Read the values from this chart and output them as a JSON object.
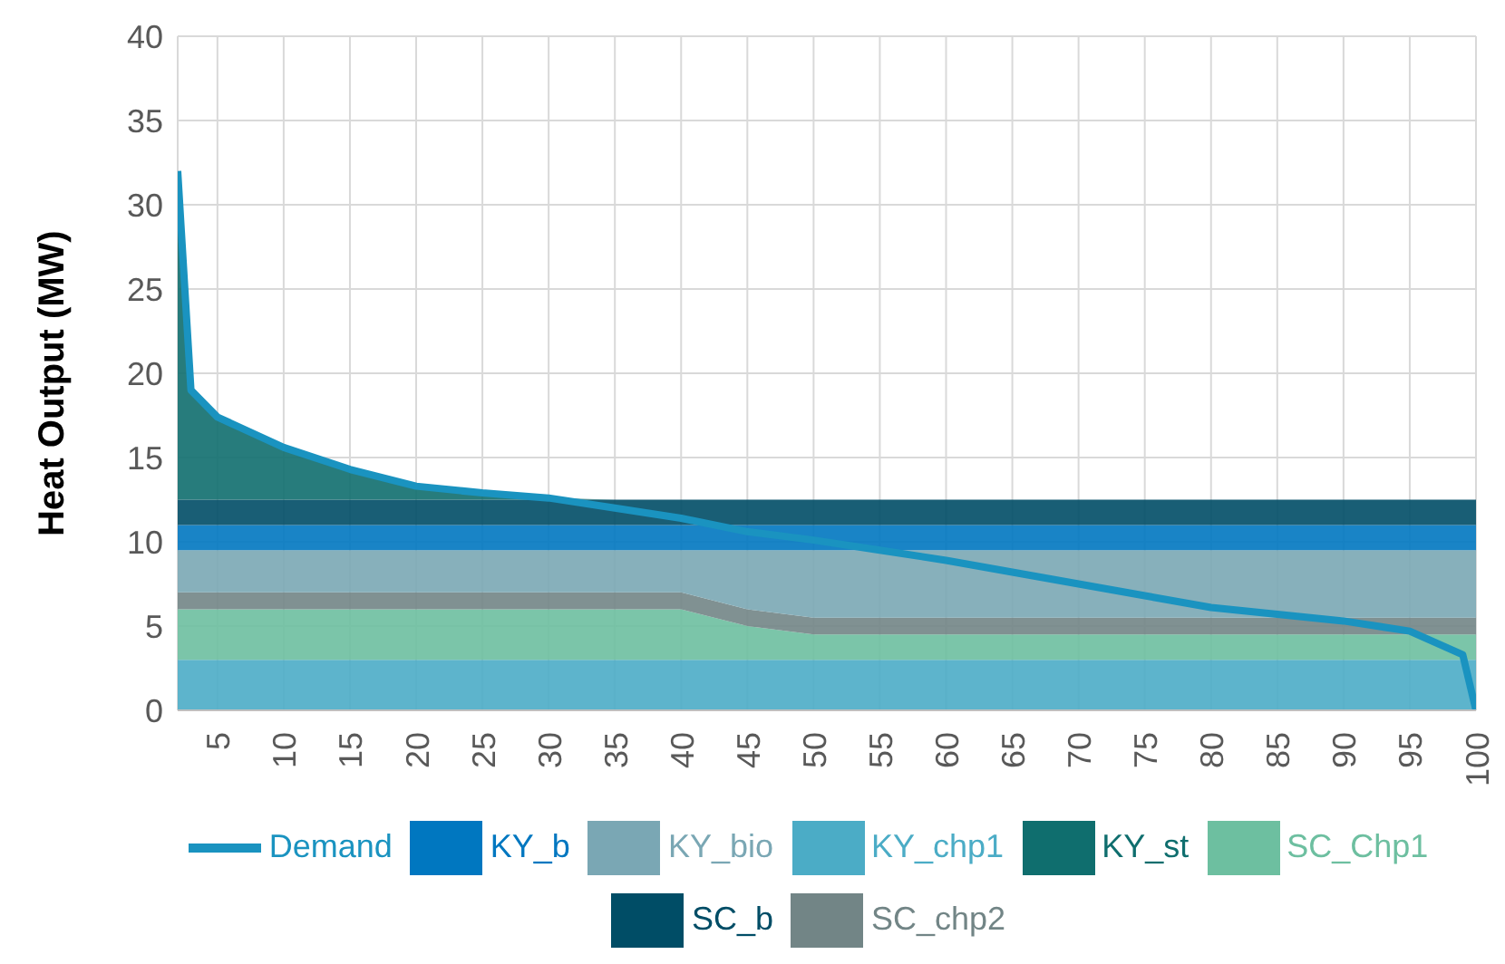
{
  "chart_data": {
    "type": "area",
    "stacked": true,
    "ylabel": "Heat Output (MW)",
    "x": [
      2,
      3,
      5,
      10,
      15,
      20,
      25,
      30,
      35,
      40,
      45,
      50,
      55,
      60,
      65,
      70,
      75,
      80,
      85,
      90,
      95,
      99,
      100
    ],
    "xlim": [
      2,
      100
    ],
    "xticks": [
      5,
      10,
      15,
      20,
      25,
      30,
      35,
      40,
      45,
      50,
      55,
      60,
      65,
      70,
      75,
      80,
      85,
      90,
      95,
      100
    ],
    "ylim": [
      0,
      40
    ],
    "yticks": [
      0,
      5,
      10,
      15,
      20,
      25,
      30,
      35,
      40
    ],
    "grid": true,
    "legend": "bottom",
    "series": [
      {
        "name": "KY_chp1",
        "color": "#4bacc6",
        "values": [
          3,
          3,
          3,
          3,
          3,
          3,
          3,
          3,
          3,
          3,
          3,
          3,
          3,
          3,
          3,
          3,
          3,
          3,
          3,
          3,
          3,
          3,
          3
        ]
      },
      {
        "name": "SC_Chp1",
        "color": "#6dbfa0",
        "values": [
          3,
          3,
          3,
          3,
          3,
          3,
          3,
          3,
          3,
          3,
          2,
          1.5,
          1.5,
          1.5,
          1.5,
          1.5,
          1.5,
          1.5,
          1.5,
          1.5,
          1.5,
          1.5,
          1.5
        ]
      },
      {
        "name": "SC_chp2",
        "color": "#728586",
        "values": [
          1,
          1,
          1,
          1,
          1,
          1,
          1,
          1,
          1,
          1,
          1,
          1,
          1,
          1,
          1,
          1,
          1,
          1,
          1,
          1,
          1,
          1,
          1
        ]
      },
      {
        "name": "KY_bio",
        "color": "#7aa7b4",
        "values": [
          2.5,
          2.5,
          2.5,
          2.5,
          2.5,
          2.5,
          2.5,
          2.5,
          2.5,
          2.5,
          3.5,
          4,
          4,
          4,
          4,
          4,
          4,
          4,
          4,
          4,
          4,
          4,
          4
        ]
      },
      {
        "name": "KY_b",
        "color": "#0077c0",
        "values": [
          1.5,
          1.5,
          1.5,
          1.5,
          1.5,
          1.5,
          1.5,
          1.5,
          1.5,
          1.5,
          1.5,
          1.5,
          1.5,
          1.5,
          1.5,
          1.5,
          1.5,
          1.5,
          1.5,
          1.5,
          1.5,
          1.5,
          1.5
        ]
      },
      {
        "name": "SC_b",
        "color": "#004d66",
        "values": [
          1.5,
          1.5,
          1.5,
          1.5,
          1.5,
          1.5,
          1.5,
          1.5,
          1.5,
          1.5,
          1.5,
          1.5,
          1.5,
          1.5,
          1.5,
          1.5,
          1.5,
          1.5,
          1.5,
          1.5,
          1.5,
          1.5,
          1.5
        ]
      },
      {
        "name": "KY_st",
        "color": "#0f6e6e",
        "values": [
          19.5,
          6.5,
          4.9,
          3.1,
          1.8,
          0.8,
          0.4,
          0.1,
          0,
          0,
          0,
          0,
          0,
          0,
          0,
          0,
          0,
          0,
          0,
          0,
          0,
          0,
          0
        ]
      },
      {
        "name": "Demand",
        "type": "line",
        "color": "#1a93c0",
        "values": [
          32,
          19,
          17.4,
          15.6,
          14.3,
          13.3,
          12.9,
          12.6,
          12,
          11.4,
          10.6,
          10.1,
          9.5,
          8.9,
          8.2,
          7.5,
          6.8,
          6.1,
          5.7,
          5.3,
          4.7,
          3.3,
          0
        ]
      }
    ]
  }
}
